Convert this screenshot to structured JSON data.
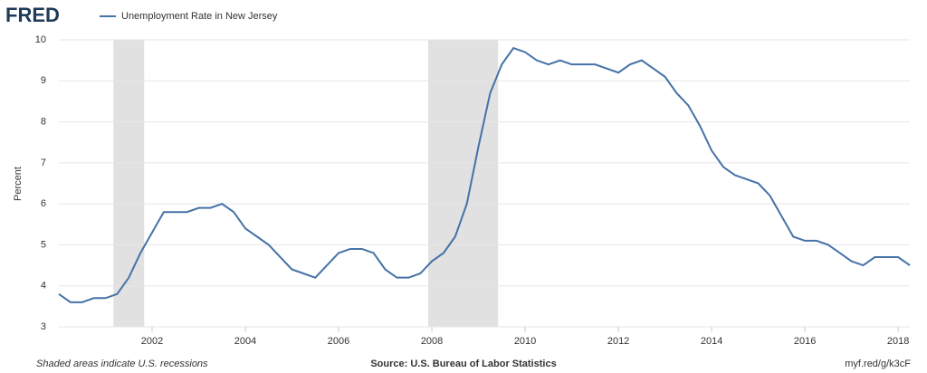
{
  "chart_data": {
    "type": "line",
    "logo": "FRED",
    "legend_text": "Unemployment Rate in New Jersey",
    "y_label": "Percent",
    "footer_left": "Shaded areas indicate U.S. recessions",
    "footer_center": "Source: U.S. Bureau of Labor Statistics",
    "footer_right": "myf.red/g/k3cF",
    "x": [
      2000,
      2000.25,
      2000.5,
      2000.75,
      2001,
      2001.25,
      2001.5,
      2001.75,
      2002,
      2002.25,
      2002.5,
      2002.75,
      2003,
      2003.25,
      2003.5,
      2003.75,
      2004,
      2004.25,
      2004.5,
      2004.75,
      2005,
      2005.25,
      2005.5,
      2005.75,
      2006,
      2006.25,
      2006.5,
      2006.75,
      2007,
      2007.25,
      2007.5,
      2007.75,
      2008,
      2008.25,
      2008.5,
      2008.75,
      2009,
      2009.25,
      2009.5,
      2009.75,
      2010,
      2010.25,
      2010.5,
      2010.75,
      2011,
      2011.25,
      2011.5,
      2011.75,
      2012,
      2012.25,
      2012.5,
      2012.75,
      2013,
      2013.25,
      2013.5,
      2013.75,
      2014,
      2014.25,
      2014.5,
      2014.75,
      2015,
      2015.25,
      2015.5,
      2015.75,
      2016,
      2016.25,
      2016.5,
      2016.75,
      2017,
      2017.25,
      2017.5,
      2017.75,
      2018,
      2018.25
    ],
    "series": [
      {
        "name": "Unemployment Rate in New Jersey",
        "color": "#4572a7",
        "values": [
          3.8,
          3.6,
          3.6,
          3.7,
          3.7,
          3.8,
          4.2,
          4.8,
          5.3,
          5.8,
          5.8,
          5.8,
          5.9,
          5.9,
          6.0,
          5.8,
          5.4,
          5.2,
          5.0,
          4.7,
          4.4,
          4.3,
          4.2,
          4.5,
          4.8,
          4.9,
          4.9,
          4.8,
          4.4,
          4.2,
          4.2,
          4.3,
          4.6,
          4.8,
          5.2,
          6.0,
          7.4,
          8.7,
          9.4,
          9.8,
          9.7,
          9.5,
          9.4,
          9.5,
          9.4,
          9.4,
          9.4,
          9.3,
          9.2,
          9.4,
          9.5,
          9.3,
          9.1,
          8.7,
          8.4,
          7.9,
          7.3,
          6.9,
          6.7,
          6.6,
          6.5,
          6.2,
          5.7,
          5.2,
          5.1,
          5.1,
          5.0,
          4.8,
          4.6,
          4.5,
          4.7,
          4.7,
          4.7,
          4.5
        ]
      }
    ],
    "recessions": [
      [
        2001.17,
        2001.83
      ],
      [
        2007.92,
        2009.42
      ]
    ],
    "recession_color": "#e1e1e1",
    "xlim": [
      2000,
      2018.25
    ],
    "xticks": [
      2002,
      2004,
      2006,
      2008,
      2010,
      2012,
      2014,
      2016,
      2018
    ],
    "ylim": [
      3,
      10
    ],
    "yticks": [
      3,
      4,
      5,
      6,
      7,
      8,
      9,
      10
    ],
    "grid": true
  }
}
